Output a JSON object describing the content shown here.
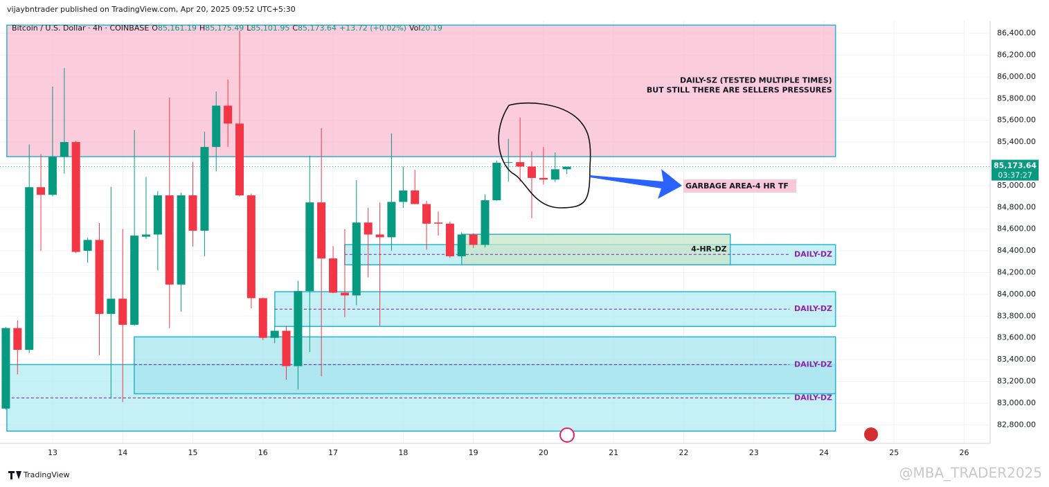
{
  "header": "vijaybntrader published on TradingView.com, Apr 20, 2025 09:52 UTC+5:30",
  "footer_brand": "TradingView",
  "watermark": "@MBA_TRADER2025",
  "chart_data": {
    "type": "candlestick",
    "title": "Bitcoin / U.S. Dollar · 4h · COINBASE",
    "ohlc_legend": [
      {
        "label": "O",
        "text": "85,161.19"
      },
      {
        "label": "H",
        "text": "85,175.49"
      },
      {
        "label": "L",
        "text": "85,101.95"
      },
      {
        "label": "C",
        "text": "85,173.64"
      }
    ],
    "change": "+13.72 (+0.02%)",
    "volume_label": "Vol",
    "volume": "20.19",
    "up_color": "#089981",
    "down_color": "#f23645",
    "x": [
      12.333,
      12.5,
      12.667,
      12.833,
      13,
      13.167,
      13.333,
      13.5,
      13.667,
      13.833,
      14,
      14.167,
      14.333,
      14.5,
      14.667,
      14.833,
      15,
      15.167,
      15.333,
      15.5,
      15.667,
      15.833,
      16,
      16.167,
      16.333,
      16.5,
      16.667,
      16.833,
      17,
      17.167,
      17.333,
      17.5,
      17.667,
      17.833,
      18,
      18.167,
      18.333,
      18.5,
      18.667,
      18.833,
      19,
      19.167,
      19.333,
      19.5,
      19.667,
      19.833,
      20,
      20.167,
      20.333
    ],
    "open": [
      82950,
      83690,
      83490,
      84985,
      84915,
      85265,
      85400,
      84400,
      84500,
      83820,
      83960,
      83720,
      84530,
      84550,
      84910,
      84090,
      84910,
      84585,
      85355,
      85735,
      85570,
      84910,
      83965,
      83600,
      83665,
      83340,
      84030,
      84845,
      84330,
      84015,
      83990,
      84660,
      84550,
      84525,
      84850,
      84955,
      84830,
      84660,
      84650,
      84350,
      84550,
      84455,
      84865,
      85210,
      85215,
      85175,
      85070,
      85055,
      85150
    ],
    "high": [
      83700,
      83760,
      85380,
      85290,
      85910,
      86080,
      85410,
      84520,
      84655,
      84990,
      84600,
      85510,
      85080,
      84950,
      85810,
      84935,
      85215,
      85495,
      85865,
      85975,
      86420,
      84925,
      83970,
      83710,
      83710,
      84125,
      85275,
      85530,
      84445,
      84600,
      85050,
      84795,
      84845,
      85480,
      85175,
      85145,
      84860,
      84760,
      84670,
      84570,
      84560,
      84920,
      85230,
      85430,
      85625,
      85315,
      85355,
      85305,
      85175
    ],
    "low": [
      82940,
      83265,
      83460,
      84400,
      84900,
      85110,
      84380,
      84290,
      83440,
      83040,
      83010,
      83710,
      84510,
      84220,
      83690,
      83840,
      84440,
      84350,
      85130,
      85355,
      84900,
      83870,
      83580,
      83550,
      83215,
      83125,
      83470,
      83245,
      84010,
      83790,
      83900,
      84155,
      83710,
      84400,
      84795,
      84830,
      84410,
      84540,
      84335,
      84335,
      84425,
      84430,
      84860,
      85035,
      85035,
      84700,
      85010,
      85035,
      85105
    ],
    "close": [
      83690,
      83490,
      84985,
      84915,
      85265,
      85400,
      84390,
      84500,
      83820,
      83960,
      83720,
      84540,
      84550,
      84910,
      84090,
      84910,
      84585,
      85355,
      85735,
      85570,
      84910,
      83965,
      83600,
      83665,
      83340,
      84030,
      84845,
      84330,
      84015,
      83990,
      84660,
      84550,
      84525,
      84850,
      84955,
      84830,
      84650,
      84650,
      84350,
      84550,
      84455,
      84865,
      85210,
      85215,
      85175,
      85070,
      85055,
      85150,
      85174
    ],
    "xlim": [
      12.25,
      26.37
    ],
    "ylim": [
      82630,
      86515
    ],
    "xticks": [
      13,
      14,
      15,
      16,
      17,
      18,
      19,
      20,
      21,
      22,
      23,
      24,
      25,
      26
    ],
    "yticks": [
      {
        "value": 82800,
        "label": "82,800.00"
      },
      {
        "value": 83000,
        "label": "83,000.00"
      },
      {
        "value": 83200,
        "label": "83,200.00"
      },
      {
        "value": 83400,
        "label": "83,400.00"
      },
      {
        "value": 83600,
        "label": "83,600.00"
      },
      {
        "value": 83800,
        "label": "83,800.00"
      },
      {
        "value": 84000,
        "label": "84,000.00"
      },
      {
        "value": 84200,
        "label": "84,200.00"
      },
      {
        "value": 84400,
        "label": "84,400.00"
      },
      {
        "value": 84600,
        "label": "84,600.00"
      },
      {
        "value": 84800,
        "label": "84,800.00"
      },
      {
        "value": 85000,
        "label": "85,000.00"
      },
      {
        "value": 85200,
        "label": "85,200.00"
      },
      {
        "value": 85400,
        "label": "85,400.00"
      },
      {
        "value": 85600,
        "label": "85,600.00"
      },
      {
        "value": 85800,
        "label": "85,800.00"
      },
      {
        "value": 86000,
        "label": "86,000.00"
      },
      {
        "value": 86200,
        "label": "86,200.00"
      },
      {
        "value": 86400,
        "label": "86,400.00"
      }
    ],
    "grid": true,
    "last_price": {
      "value": 85173.64,
      "label": "85,173.64"
    },
    "countdown": "03:37:27",
    "zones": [
      {
        "x": [
          12.348,
          24.165
        ],
        "y": [
          85266,
          86475
        ],
        "color": "#f8bbd0",
        "lines": [
          "DAILY-SZ (TESTED MULTIPLE TIMES)",
          "BUT STILL THERE ARE SELLERS PRESSURES"
        ]
      },
      {
        "x": [
          12.348,
          24.165
        ],
        "y": [
          82743,
          83354
        ],
        "color": "#b2ebf2"
      },
      {
        "x": [
          14.165,
          24.165
        ],
        "y": [
          83086,
          83609
        ],
        "color": "#a5e4ee"
      },
      {
        "x": [
          16.169,
          24.165
        ],
        "y": [
          83705,
          84024
        ],
        "color": "#b2ebf2"
      },
      {
        "x": [
          17.166,
          24.165
        ],
        "y": [
          84272,
          84457
        ],
        "color": "#b2ebf2"
      },
      {
        "x": [
          18.834,
          22.664
        ],
        "y": [
          84272,
          84552
        ],
        "color": "#c8e6c9",
        "lines": [
          "4-HR-DZ"
        ]
      }
    ],
    "levels": [
      {
        "value": 84367,
        "label": "DAILY-DZ",
        "from": 17.166
      },
      {
        "value": 83864,
        "label": "DAILY-DZ",
        "from": 16.169
      },
      {
        "value": 83354,
        "label": "DAILY-DZ",
        "from": 14.165
      },
      {
        "value": 83048,
        "label": "DAILY-DZ",
        "from": 12.348
      }
    ],
    "callout": "GARBAGE AREA-4 HR TF"
  }
}
